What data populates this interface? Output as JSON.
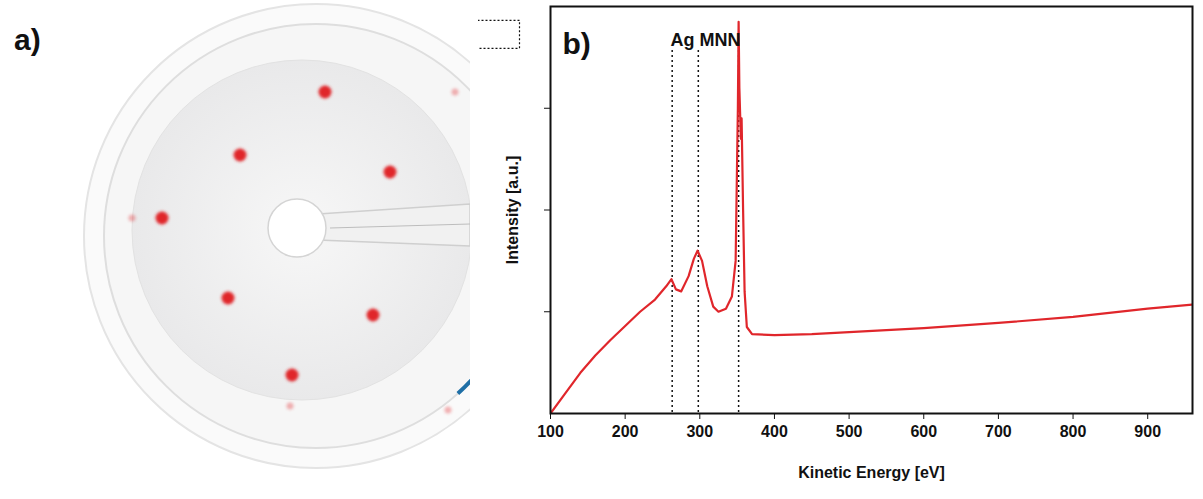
{
  "image_panel": {
    "panel_label": "a)"
  },
  "chart_data": {
    "type": "line",
    "panel_label": "b)",
    "x_label": "Kinetic Energy [eV]",
    "y_label": "Intensity [a.u.]",
    "color": "#e0262b",
    "xlim": [
      100,
      960
    ],
    "xticks": [
      100,
      200,
      300,
      400,
      500,
      600,
      700,
      800,
      900
    ],
    "ylim": [
      0,
      4
    ],
    "yticks": [
      1,
      2,
      3
    ],
    "tick_labels": "x",
    "grid": false,
    "annotation": {
      "text": "Ag MNN",
      "lines": [
        263,
        298,
        352
      ]
    },
    "x": [
      100,
      120,
      140,
      160,
      180,
      200,
      220,
      240,
      255,
      262,
      268,
      275,
      285,
      292,
      297,
      303,
      310,
      318,
      325,
      335,
      343,
      348,
      351,
      352,
      353,
      355,
      356,
      358,
      360,
      363,
      370,
      400,
      450,
      500,
      600,
      700,
      800,
      900,
      960
    ],
    "values": [
      0.0,
      0.2,
      0.4,
      0.57,
      0.72,
      0.86,
      1.0,
      1.12,
      1.25,
      1.32,
      1.22,
      1.2,
      1.35,
      1.52,
      1.6,
      1.5,
      1.25,
      1.05,
      1.0,
      1.03,
      1.15,
      1.5,
      3.0,
      3.85,
      3.2,
      2.7,
      2.9,
      2.0,
      1.2,
      0.85,
      0.78,
      0.77,
      0.78,
      0.8,
      0.84,
      0.89,
      0.95,
      1.03,
      1.07
    ]
  }
}
